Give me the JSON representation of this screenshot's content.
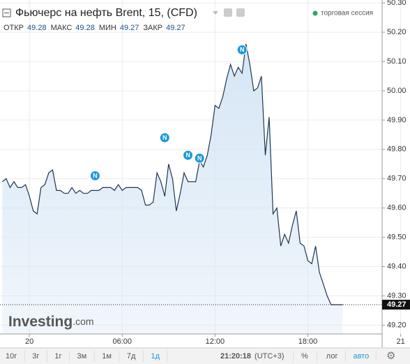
{
  "chart_data": {
    "type": "area-line",
    "title": "Фьючерс на нефть Brent, 15, (CFD)",
    "session": "торговая сессия",
    "ohlc": [
      {
        "label": "ОТКР",
        "value": 49.28
      },
      {
        "label": "МАКС",
        "value": 49.28
      },
      {
        "label": "МИН",
        "value": 49.27
      },
      {
        "label": "ЗАКР",
        "value": 49.27
      }
    ],
    "x": [
      -1.75,
      -1.5,
      -1.25,
      -1,
      -0.75,
      -0.5,
      -0.25,
      0,
      0.25,
      0.5,
      0.75,
      1,
      1.25,
      1.5,
      1.75,
      2,
      2.25,
      2.5,
      2.75,
      3,
      3.25,
      3.5,
      3.75,
      4,
      4.25,
      4.5,
      4.75,
      5,
      5.25,
      5.5,
      5.75,
      6,
      6.25,
      6.5,
      6.75,
      7,
      7.25,
      7.5,
      7.75,
      8,
      8.25,
      8.5,
      8.75,
      9,
      9.25,
      9.5,
      9.75,
      10,
      10.25,
      10.5,
      10.75,
      11,
      11.25,
      11.5,
      11.75,
      12,
      12.25,
      12.5,
      12.75,
      13,
      13.25,
      13.5,
      13.75,
      14,
      14.25,
      14.5,
      14.75,
      15,
      15.25,
      15.5,
      15.75,
      16,
      16.25,
      16.5,
      16.75,
      17,
      17.25,
      17.5,
      17.75,
      18,
      18.25,
      18.5,
      18.75,
      19,
      19.25,
      19.5,
      19.75,
      20,
      20.25
    ],
    "values": [
      49.69,
      49.7,
      49.67,
      49.69,
      49.67,
      49.67,
      49.68,
      49.64,
      49.59,
      49.58,
      49.67,
      49.68,
      49.72,
      49.73,
      49.66,
      49.66,
      49.65,
      49.65,
      49.67,
      49.65,
      49.66,
      49.65,
      49.65,
      49.66,
      49.66,
      49.66,
      49.67,
      49.67,
      49.67,
      49.66,
      49.68,
      49.66,
      49.67,
      49.67,
      49.67,
      49.67,
      49.66,
      49.61,
      49.61,
      49.62,
      49.72,
      49.69,
      49.64,
      49.75,
      49.7,
      49.59,
      49.65,
      49.72,
      49.69,
      49.69,
      49.69,
      49.76,
      49.74,
      49.78,
      49.85,
      49.95,
      49.94,
      49.98,
      50.04,
      50.09,
      50.05,
      50.08,
      50.06,
      50.16,
      50.09,
      50.0,
      50.01,
      50.05,
      49.78,
      49.91,
      49.58,
      49.6,
      49.47,
      49.51,
      49.48,
      49.54,
      49.59,
      49.48,
      49.47,
      49.42,
      49.41,
      49.47,
      49.38,
      49.34,
      49.3,
      49.27,
      49.27,
      49.27,
      49.27
    ],
    "line_color": "#1c3553",
    "fill_color": "#d6e6f5",
    "last_price": 49.27,
    "events": [
      {
        "x": 4.25,
        "y": 49.71,
        "label": "N"
      },
      {
        "x": 8.75,
        "y": 49.84,
        "label": "N"
      },
      {
        "x": 10.25,
        "y": 49.78,
        "label": "N"
      },
      {
        "x": 11,
        "y": 49.77,
        "label": "N"
      },
      {
        "x": 13.75,
        "y": 50.14,
        "label": "N"
      }
    ],
    "xlim": [
      -1.9,
      22.8
    ],
    "xticks": [
      {
        "value": 0,
        "label": "20"
      },
      {
        "value": 6,
        "label": "06:00"
      },
      {
        "value": 12,
        "label": "12:00"
      },
      {
        "value": 18,
        "label": "18:00"
      },
      {
        "value": 24,
        "label": "21"
      }
    ],
    "ylim": [
      49.17,
      50.31
    ],
    "yticks": [
      {
        "value": 49.2,
        "label": "49.20"
      },
      {
        "value": 49.3,
        "label": "49.30"
      },
      {
        "value": 49.4,
        "label": "49.40"
      },
      {
        "value": 49.5,
        "label": "49.50"
      },
      {
        "value": 49.6,
        "label": "49.60"
      },
      {
        "value": 49.7,
        "label": "49.70"
      },
      {
        "value": 49.8,
        "label": "49.80"
      },
      {
        "value": 49.9,
        "label": "49.90"
      },
      {
        "value": 50.0,
        "label": "50.00"
      },
      {
        "value": 50.1,
        "label": "50.10"
      },
      {
        "value": 50.2,
        "label": "50.20"
      },
      {
        "value": 50.3,
        "label": "50.30"
      }
    ],
    "grid": true
  },
  "logo": {
    "brand": "Investing",
    "suffix": ".com"
  },
  "toolbar": {
    "periods": [
      "10г",
      "3г",
      "1г",
      "3м",
      "1м",
      "7д",
      "1д"
    ],
    "active": 6,
    "time": "21:20:18",
    "timezone": "(UTC+3)",
    "options": [
      "%",
      "лог",
      "авто"
    ]
  }
}
